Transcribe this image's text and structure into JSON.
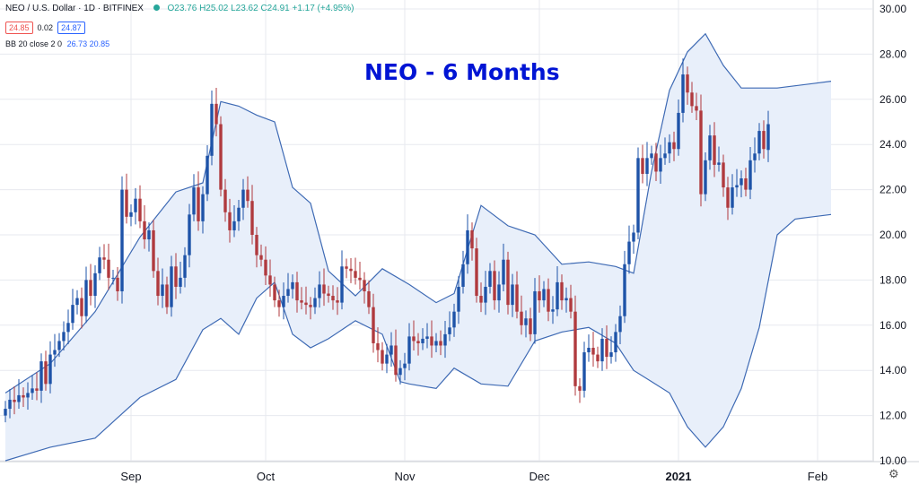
{
  "header": {
    "symbol": "NEO / U.S. Dollar · 1D · BITFINEX",
    "ohlc": "O23.76 H25.02 L23.62 C24.91 +1.17 (+4.95%)",
    "bid": "24.85",
    "spread": "0.02",
    "ask": "24.87",
    "indicator_label": "BB 20 close 2 0",
    "indicator_values": "26.73 20.85"
  },
  "title": "NEO - 6 Months",
  "colors": {
    "up": "#1e53a8",
    "down": "#b03a3e",
    "band_line": "#3e6ab4",
    "band_fill": "#e8effa",
    "grid": "#e7e9ef",
    "axis_text": "#131722",
    "title": "#0014d4"
  },
  "icons": {
    "settings": "gear-icon"
  },
  "chart_data": {
    "type": "candlestick",
    "title": "NEO - 6 Months",
    "y_axis": {
      "side": "right",
      "ylim": [
        10,
        30
      ],
      "ticks": [
        "10.00",
        "12.00",
        "14.00",
        "16.00",
        "18.00",
        "20.00",
        "22.00",
        "24.00",
        "26.00",
        "28.00",
        "30.00"
      ]
    },
    "x_axis": {
      "labels": [
        "Sep",
        "Oct",
        "Nov",
        "Dec",
        "2021",
        "Feb"
      ],
      "label_days": [
        28,
        58,
        89,
        119,
        150,
        181
      ]
    },
    "grid": true,
    "series": [
      {
        "name": "NEO / U.S. Dollar",
        "kind": "candles",
        "day0": 0,
        "close": [
          12.3,
          12.7,
          12.6,
          12.9,
          12.8,
          13.0,
          13.2,
          13.1,
          14.4,
          13.4,
          14.7,
          14.9,
          15.3,
          15.7,
          16.1,
          16.9,
          17.2,
          16.4,
          18.0,
          17.3,
          18.3,
          19.0,
          18.9,
          18.1,
          18.1,
          17.5,
          22.0,
          20.8,
          21.0,
          21.6,
          20.6,
          19.8,
          20.2,
          18.4,
          17.3,
          17.8,
          16.8,
          18.6,
          17.7,
          18.1,
          19.1,
          20.9,
          22.1,
          20.6,
          21.8,
          23.5,
          25.8,
          24.9,
          22.0,
          21.0,
          20.2,
          20.6,
          21.2,
          22.0,
          21.5,
          20.0,
          19.1,
          18.9,
          18.2,
          17.8,
          17.1,
          16.8,
          17.3,
          17.6,
          17.9,
          17.1,
          17.0,
          16.9,
          16.8,
          17.2,
          17.8,
          17.4,
          17.3,
          17.1,
          17.0,
          18.6,
          18.5,
          18.4,
          18.1,
          18.0,
          17.5,
          16.8,
          15.2,
          14.9,
          14.3,
          14.7,
          15.1,
          13.8,
          14.1,
          14.3,
          15.5,
          15.3,
          15.2,
          15.4,
          15.5,
          15.1,
          15.3,
          15.1,
          15.6,
          15.9,
          16.6,
          17.7,
          18.7,
          20.2,
          19.4,
          17.3,
          17.0,
          17.7,
          18.4,
          17.1,
          17.8,
          18.9,
          16.9,
          17.8,
          16.6,
          16.0,
          16.3,
          15.6,
          17.5,
          17.1,
          17.6,
          16.6,
          16.7,
          17.9,
          17.1,
          17.2,
          16.6,
          13.3,
          13.1,
          14.8,
          15.0,
          14.7,
          14.4,
          15.4,
          14.6,
          14.8,
          15.7,
          16.4,
          18.7,
          19.7,
          20.1,
          23.4,
          22.7,
          23.4,
          23.6,
          22.8,
          23.4,
          23.6,
          24.1,
          23.8,
          25.4,
          27.1,
          26.3,
          25.7,
          25.5,
          21.8,
          23.3,
          24.4,
          23.1,
          23.2,
          22.1,
          21.2,
          22.1,
          22.2,
          22.5,
          22.0,
          23.3,
          23.6,
          24.6,
          23.8,
          24.9
        ],
        "open": [
          12.0,
          12.3,
          12.7,
          12.6,
          12.9,
          12.8,
          13.0,
          13.2,
          13.1,
          14.4,
          13.4,
          14.7,
          14.9,
          15.3,
          15.7,
          16.1,
          16.9,
          17.2,
          16.4,
          18.0,
          17.3,
          18.3,
          19.0,
          18.9,
          18.1,
          18.1,
          17.5,
          22.0,
          20.8,
          21.0,
          21.6,
          20.6,
          19.8,
          20.2,
          18.4,
          17.3,
          17.8,
          16.8,
          18.6,
          17.7,
          18.1,
          19.1,
          20.9,
          22.1,
          20.6,
          21.8,
          23.5,
          25.8,
          24.9,
          22.0,
          21.0,
          20.2,
          20.6,
          21.2,
          22.0,
          21.5,
          20.0,
          19.1,
          18.9,
          18.2,
          17.8,
          17.1,
          16.8,
          17.3,
          17.6,
          17.9,
          17.1,
          17.0,
          16.9,
          16.8,
          17.2,
          17.8,
          17.4,
          17.3,
          17.1,
          17.0,
          18.6,
          18.5,
          18.4,
          18.1,
          18.0,
          17.5,
          16.8,
          15.2,
          14.9,
          14.3,
          14.7,
          15.1,
          13.8,
          14.1,
          14.3,
          15.5,
          15.3,
          15.2,
          15.4,
          15.5,
          15.1,
          15.3,
          15.1,
          15.6,
          15.9,
          16.6,
          17.7,
          18.7,
          20.2,
          19.4,
          17.3,
          17.0,
          17.7,
          18.4,
          17.1,
          17.8,
          18.9,
          16.9,
          17.8,
          16.6,
          16.0,
          16.3,
          15.6,
          17.5,
          17.1,
          17.6,
          16.6,
          16.7,
          17.9,
          17.1,
          17.2,
          16.6,
          13.3,
          13.1,
          14.8,
          15.0,
          14.7,
          14.4,
          15.4,
          14.6,
          14.8,
          15.7,
          16.4,
          18.7,
          19.7,
          20.1,
          23.4,
          22.7,
          23.4,
          23.6,
          22.8,
          23.4,
          23.6,
          24.1,
          23.8,
          25.4,
          27.1,
          26.3,
          25.7,
          25.5,
          21.8,
          23.3,
          24.4,
          23.1,
          23.2,
          22.1,
          21.2,
          22.1,
          22.2,
          22.5,
          22.0,
          23.3,
          23.6,
          24.6,
          23.76
        ]
      },
      {
        "name": "BB 20 close 2 0 upper",
        "kind": "line",
        "x": [
          0,
          10,
          20,
          30,
          38,
          44,
          48,
          52,
          56,
          60,
          64,
          68,
          72,
          78,
          84,
          90,
          96,
          100,
          106,
          112,
          118,
          124,
          130,
          136,
          140,
          144,
          148,
          152,
          156,
          160,
          164,
          168,
          172,
          176,
          180,
          184
        ],
        "y": [
          13.0,
          14.3,
          16.6,
          19.9,
          21.9,
          22.3,
          25.9,
          25.7,
          25.3,
          25.0,
          22.1,
          21.4,
          18.4,
          17.3,
          18.5,
          17.8,
          17.0,
          17.4,
          21.3,
          20.4,
          20.0,
          18.7,
          18.8,
          18.6,
          18.3,
          22.8,
          26.4,
          28.1,
          28.9,
          27.5,
          26.5,
          26.5,
          26.5,
          26.6,
          26.7,
          26.8
        ]
      },
      {
        "name": "BB 20 close 2 0 lower",
        "kind": "line",
        "x": [
          0,
          10,
          20,
          30,
          38,
          44,
          48,
          52,
          56,
          60,
          64,
          68,
          72,
          78,
          84,
          88,
          90,
          96,
          100,
          106,
          112,
          118,
          124,
          130,
          136,
          140,
          144,
          148,
          152,
          156,
          160,
          164,
          168,
          172,
          176,
          180,
          184
        ],
        "y": [
          10.0,
          10.6,
          11.0,
          12.8,
          13.6,
          15.8,
          16.3,
          15.6,
          17.2,
          17.9,
          15.6,
          15.0,
          15.4,
          16.2,
          15.6,
          13.5,
          13.4,
          13.2,
          14.1,
          13.4,
          13.3,
          15.3,
          15.7,
          15.9,
          15.2,
          14.0,
          13.5,
          13.0,
          11.5,
          10.6,
          11.5,
          13.2,
          15.9,
          20.0,
          20.7,
          20.8,
          20.9
        ]
      }
    ]
  }
}
